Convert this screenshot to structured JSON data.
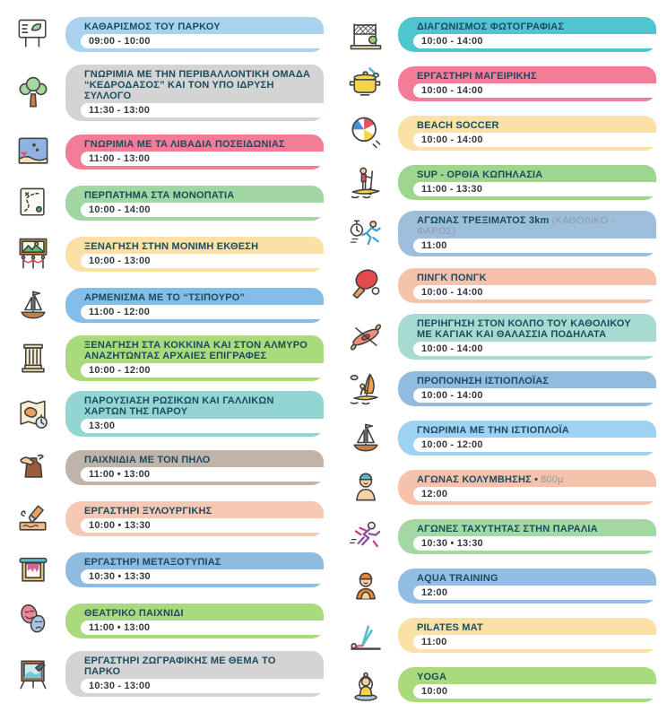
{
  "page": {
    "background": "#FFFFFF",
    "title_color": "#1C4B5E",
    "time_color": "#35393C",
    "note_color": "#8D9BA4",
    "time_band_color": "#FFFFFF"
  },
  "columns": [
    {
      "name": "left",
      "items": [
        {
          "icon": "park-sign-icon",
          "title": "ΚΑΘΑΡΙΣΜΟΣ ΤΟΥ ΠΑΡΚΟΥ",
          "time": "09:00 - 10:00",
          "color": "#A9D2EF"
        },
        {
          "icon": "tree-icon",
          "title": "ΓΝΩΡΙΜΙΑ ΜΕ ΤΗΝ ΠΕΡΙΒΑΛΛΟΝΤΙΚΗ ΟΜΑΔΑ “ΚΕΔΡΟΔΑΣΟΣ” ΚΑΙ ΤΟΝ ΥΠΟ ΙΔΡΥΣΗ ΣΥΛΛΟΓΟ",
          "time": "11:30 - 13:00",
          "color": "#D4D4D4"
        },
        {
          "icon": "seabed-icon",
          "title": "ΓΝΩΡΙΜΙΑ ΜΕ ΤΑ ΛΙΒΑΔΙΑ ΠΟΣΕΙΔΩΝΙΑΣ",
          "time": "11:00 - 13:00",
          "color": "#F37D97"
        },
        {
          "icon": "trail-map-icon",
          "title": "ΠΕΡΠΑΤΗΜΑ ΣΤΑ ΜΟΝΟΠΑΤΙΑ",
          "time": "10:00 - 14:00",
          "color": "#A1D7A2"
        },
        {
          "icon": "exhibition-icon",
          "title": "ΞΕΝΑΓΗΣΗ ΣΤΗΝ ΜΟΝΙΜΗ ΕΚΘΕΣΗ",
          "time": "10:00 - 13:00",
          "color": "#FBE1A6"
        },
        {
          "icon": "sailboat-icon",
          "title": "ΑΡΜΕΝΙΣΜΑ ΜΕ ΤΟ “ΤΣΙΠΟΥΡΟ”",
          "time": "11:00 - 12:00",
          "color": "#84BDE7"
        },
        {
          "icon": "column-icon",
          "title": "ΞΕΝΑΓΗΣΗ ΣΤΑ ΚΟΚΚΙΝΑ ΚΑΙ ΣΤΟΝ ΑΛΜΥΡΟ ΑΝΑΖΗΤΩΝΤΑΣ ΑΡΧΑΙΕΣ ΕΠΙΓΡΑΦΕΣ",
          "time": "10:00 - 12:00",
          "color": "#A9DA7B"
        },
        {
          "icon": "old-map-icon",
          "title": "ΠΑΡΟΥΣΙΑΣΗ ΡΩΣΙΚΩΝ ΚΑΙ ΓΑΛΛΙΚΩΝ ΧΑΡΤΩΝ ΤΗΣ ΠΑΡΟΥ",
          "time": "13:00",
          "color": "#93D5D3"
        },
        {
          "icon": "clay-hands-icon",
          "title": "ΠΑΙΧΝΙΔΙΑ ΜΕ ΤΟΝ ΠΗΛΟ",
          "time": "11:00 • 13:00",
          "color": "#C0B4AA"
        },
        {
          "icon": "wood-carving-icon",
          "title": "ΕΡΓΑΣΤΗΡΙ ΞΥΛΟΥΡΓΙΚΗΣ",
          "time": "10:00 • 13:30",
          "color": "#F7C8B3"
        },
        {
          "icon": "silkscreen-icon",
          "title": "ΕΡΓΑΣΤΗΡΙ ΜΕΤΑΞΟΤΥΠΙΑΣ",
          "time": "10:30 • 13:30",
          "color": "#8FBBE1"
        },
        {
          "icon": "theater-masks-icon",
          "title": "ΘΕΑΤΡΙΚΟ ΠΑΙΧΝΙΔΙ",
          "time": "11:00 • 13:00",
          "color": "#A9DA7B"
        },
        {
          "icon": "easel-icon",
          "title": "ΕΡΓΑΣΤΗΡΙ ΖΩΓΡΑΦΙΚΗΣ ΜΕ ΘΕΜΑ ΤΟ ΠΑΡΚΟ",
          "time": "10:30 - 13:00",
          "color": "#D4D4D4"
        }
      ]
    },
    {
      "name": "right",
      "items": [
        {
          "icon": "photo-net-icon",
          "title": "ΔΙΑΓΩΝΙΣΜΟΣ ΦΩΤΟΓΡΑΦΙΑΣ",
          "time": "10:00 - 14:00",
          "color": "#4FC5CF"
        },
        {
          "icon": "cooking-pot-icon",
          "title": "ΕΡΓΑΣΤΗΡΙ ΜΑΓΕΙΡΙΚΗΣ",
          "time": "10:00 - 14:00",
          "color": "#F37D97"
        },
        {
          "icon": "beach-ball-icon",
          "title": "BEACH SOCCER",
          "time": "10:00 - 14:00",
          "color": "#FBE1A6"
        },
        {
          "icon": "sup-icon",
          "title": "SUP - ΟΡΘΙΑ ΚΩΠΗΛΑΣΙΑ",
          "time": "11:00 - 13:30",
          "color": "#9ED58F"
        },
        {
          "icon": "run-stopwatch-icon",
          "title": "ΑΓΩΝΑΣ ΤΡΕΞΙΜΑΤΟΣ 3km",
          "note": "(ΚΑΘΟΛΙΚΟ - ΦΑΡΟΣ)",
          "time": "11:00",
          "color": "#9DBFDB"
        },
        {
          "icon": "ping-pong-icon",
          "title": "ΠΙΝΓΚ ΠΟΝΓΚ",
          "time": "10:00 - 14:00",
          "color": "#F7C2AC"
        },
        {
          "icon": "kayak-icon",
          "title": "ΠΕΡΙΗΓΗΣΗ ΣΤΟΝ ΚΟΛΠΟ ΤΟΥ ΚΑΘΟΛΙΚΟΥ ΜΕ ΚΑΓΙΑΚ ΚΑΙ ΘΑΛΑΣΣΙΑ ΠΟΔΗΛΑΤΑ",
          "time": "10:00 - 14:00",
          "color": "#A7DBD2"
        },
        {
          "icon": "windsurf-icon",
          "title": "ΠΡΟΠΟΝΗΣΗ ΙΣΤΙΟΠΛΟΪΑΣ",
          "time": "10:00 - 14:00",
          "color": "#92BBE0"
        },
        {
          "icon": "sailboat-icon",
          "title": "ΓΝΩΡΙΜΙΑ ΜΕ ΤΗΝ ΙΣΤΙΟΠΛΟΪΑ",
          "time": "10:00 - 12:00",
          "color": "#9ED2F2"
        },
        {
          "icon": "swimmer-icon",
          "title": "ΑΓΩΝΑΣ ΚΟΛΥΜΒΗΣΗΣ •",
          "note": "800μ",
          "time": "12:00",
          "color": "#F7C2AC"
        },
        {
          "icon": "sprinters-icon",
          "title": "ΑΓΩΝΕΣ ΤΑΧΥΤΗΤΑΣ ΣΤΗΝ ΠΑΡΑΛΙΑ",
          "time": "10:30 • 13:30",
          "color": "#A3D8A3"
        },
        {
          "icon": "aqua-training-icon",
          "title": "AQUA TRAINING",
          "time": "12:00",
          "color": "#92BEE6"
        },
        {
          "icon": "pilates-icon",
          "title": "PILATES MAT",
          "time": "11:00",
          "color": "#FBE1A6"
        },
        {
          "icon": "yoga-icon",
          "title": "YOGA",
          "time": "10:00",
          "color": "#A9DA7B"
        }
      ]
    }
  ]
}
